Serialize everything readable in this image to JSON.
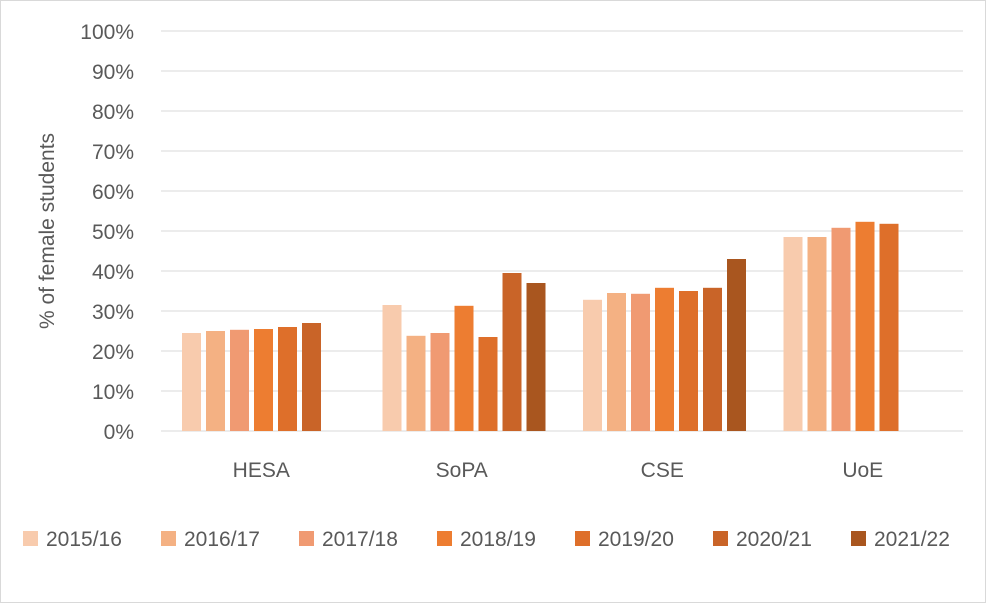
{
  "chart_data": {
    "type": "bar",
    "title": "",
    "xlabel": "",
    "ylabel": "% of female students",
    "ylim": [
      0,
      100
    ],
    "yticks": [
      "0%",
      "10%",
      "20%",
      "30%",
      "40%",
      "50%",
      "60%",
      "70%",
      "80%",
      "90%",
      "100%"
    ],
    "grid": true,
    "legend_position": "bottom",
    "categories": [
      "HESA",
      "SoPA",
      "CSE",
      "UoE"
    ],
    "series": [
      {
        "name": "2015/16",
        "color": "#f8cbad",
        "values": [
          24.5,
          31.5,
          32.8,
          48.5
        ]
      },
      {
        "name": "2016/17",
        "color": "#f4b183",
        "values": [
          25.0,
          23.8,
          34.5,
          48.5
        ]
      },
      {
        "name": "2017/18",
        "color": "#f09a72",
        "values": [
          25.3,
          24.5,
          34.3,
          50.8
        ]
      },
      {
        "name": "2018/19",
        "color": "#ed7d31",
        "values": [
          25.5,
          31.3,
          35.8,
          52.3
        ]
      },
      {
        "name": "2019/20",
        "color": "#de6f2a",
        "values": [
          26.0,
          23.5,
          35.0,
          51.8
        ]
      },
      {
        "name": "2020/21",
        "color": "#c96428",
        "values": [
          27.0,
          39.5,
          35.8,
          null
        ]
      },
      {
        "name": "2021/22",
        "color": "#a9561f",
        "values": [
          null,
          37.0,
          43.0,
          null
        ]
      }
    ]
  }
}
